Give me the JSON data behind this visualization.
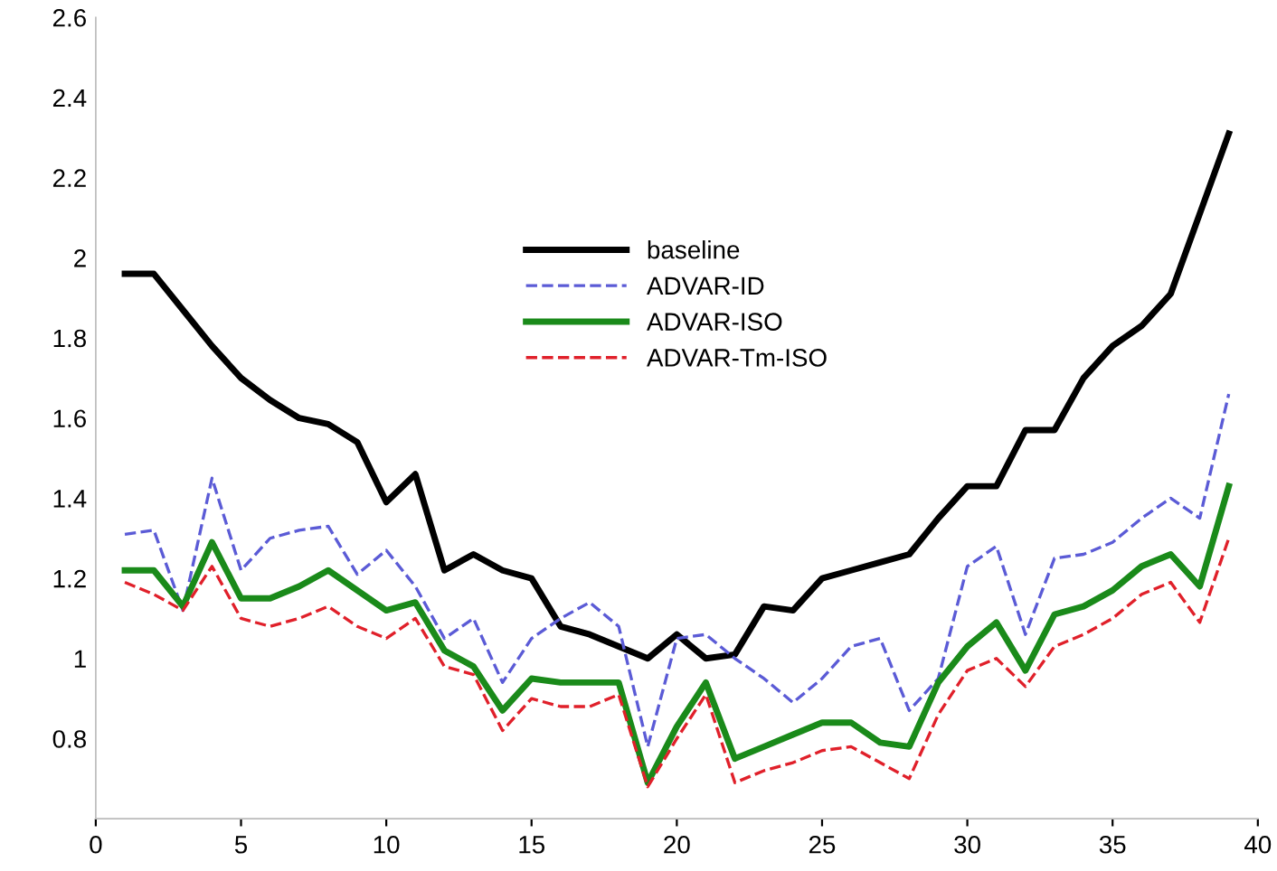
{
  "chart_data": {
    "type": "line",
    "x": [
      1,
      2,
      3,
      4,
      5,
      6,
      7,
      8,
      9,
      10,
      11,
      12,
      13,
      14,
      15,
      16,
      17,
      18,
      19,
      20,
      21,
      22,
      23,
      24,
      25,
      26,
      27,
      28,
      29,
      30,
      31,
      32,
      33,
      34,
      35,
      36,
      37,
      38,
      39
    ],
    "series": [
      {
        "name": "baseline",
        "color": "#000000",
        "line_style": "solid",
        "values": [
          1.96,
          1.96,
          1.87,
          1.78,
          1.7,
          1.645,
          1.6,
          1.585,
          1.54,
          1.39,
          1.46,
          1.22,
          1.26,
          1.22,
          1.2,
          1.08,
          1.06,
          1.03,
          1.0,
          1.06,
          1.0,
          1.01,
          1.13,
          1.12,
          1.2,
          1.22,
          1.24,
          1.26,
          1.35,
          1.43,
          1.43,
          1.57,
          1.57,
          1.7,
          1.78,
          1.83,
          1.91,
          2.11,
          2.31
        ]
      },
      {
        "name": "ADVAR-ID",
        "color": "#5b5bd6",
        "line_style": "dashed",
        "values": [
          1.31,
          1.32,
          1.12,
          1.45,
          1.22,
          1.3,
          1.32,
          1.33,
          1.21,
          1.27,
          1.18,
          1.05,
          1.1,
          0.94,
          1.05,
          1.1,
          1.14,
          1.08,
          0.78,
          1.05,
          1.06,
          1.0,
          0.95,
          0.89,
          0.95,
          1.03,
          1.05,
          0.87,
          0.95,
          1.23,
          1.28,
          1.06,
          1.25,
          1.26,
          1.29,
          1.35,
          1.4,
          1.35,
          1.66
        ]
      },
      {
        "name": "ADVAR-ISO",
        "color": "#1a8a1a",
        "line_style": "solid",
        "values": [
          1.22,
          1.22,
          1.13,
          1.29,
          1.15,
          1.15,
          1.18,
          1.22,
          1.17,
          1.12,
          1.14,
          1.02,
          0.98,
          0.87,
          0.95,
          0.94,
          0.94,
          0.94,
          0.69,
          0.83,
          0.94,
          0.75,
          0.78,
          0.81,
          0.84,
          0.84,
          0.79,
          0.78,
          0.94,
          1.03,
          1.09,
          0.97,
          1.11,
          1.13,
          1.17,
          1.23,
          1.26,
          1.18,
          1.43
        ]
      },
      {
        "name": "ADVAR-Tm-ISO",
        "color": "#e0202a",
        "line_style": "dashed",
        "values": [
          1.19,
          1.16,
          1.12,
          1.23,
          1.1,
          1.08,
          1.1,
          1.13,
          1.08,
          1.05,
          1.1,
          0.98,
          0.96,
          0.82,
          0.9,
          0.88,
          0.88,
          0.91,
          0.68,
          0.8,
          0.91,
          0.69,
          0.72,
          0.74,
          0.77,
          0.78,
          0.74,
          0.7,
          0.86,
          0.97,
          1.0,
          0.93,
          1.03,
          1.06,
          1.1,
          1.16,
          1.19,
          1.09,
          1.3
        ]
      }
    ],
    "xlim": [
      0,
      40
    ],
    "xticks": [
      0,
      5,
      10,
      15,
      20,
      25,
      30,
      35,
      40
    ],
    "ylim": [
      0.6,
      2.6
    ],
    "yticks": [
      0.8,
      1,
      1.2,
      1.4,
      1.6,
      1.8,
      2,
      2.2,
      2.4,
      2.6
    ],
    "legend": "top",
    "grid": false,
    "marker": "none"
  }
}
